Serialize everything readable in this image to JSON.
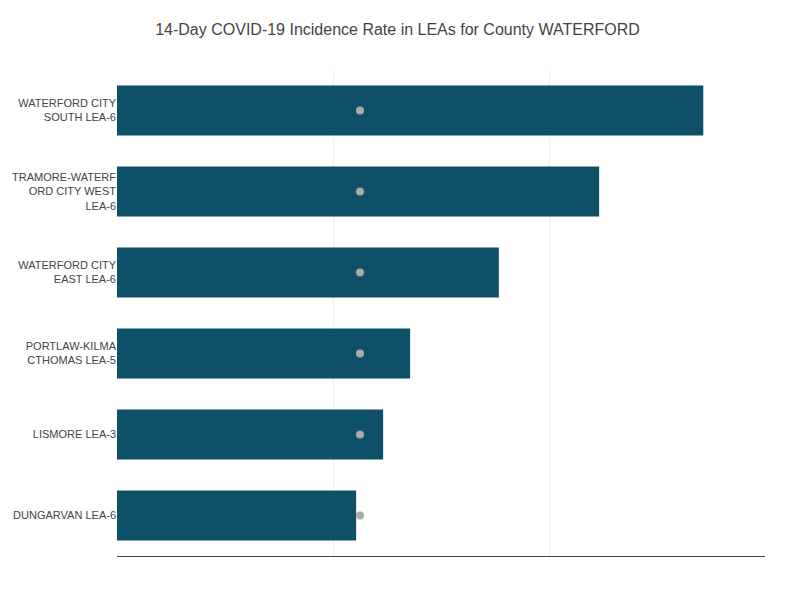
{
  "chart_data": {
    "type": "bar",
    "orientation": "horizontal",
    "title": "14-Day COVID-19 Incidence Rate in LEAs for County WATERFORD",
    "categories": [
      "DUNGARVAN LEA-6",
      "LISMORE LEA-3",
      "PORTLAW-KILMA\nCTHOMAS LEA-5",
      "WATERFORD CITY\nEAST LEA-6",
      "TRAMORE-WATERF\nORD CITY WEST\nLEA-6",
      "WATERFORD CITY\nSOUTH LEA-6"
    ],
    "series": [
      {
        "type": "bar",
        "color": "#0d5068",
        "values": [
          310,
          345,
          380,
          495,
          625,
          760
        ]
      },
      {
        "type": "scatter",
        "marker": "circle",
        "color": "#aaaaaa",
        "values": [
          315,
          315,
          315,
          315,
          315,
          315
        ]
      }
    ],
    "xlim": [
      0,
      840
    ],
    "xticks": [
      0,
      280,
      560,
      840
    ],
    "grid": true,
    "tick_labels": "y"
  }
}
